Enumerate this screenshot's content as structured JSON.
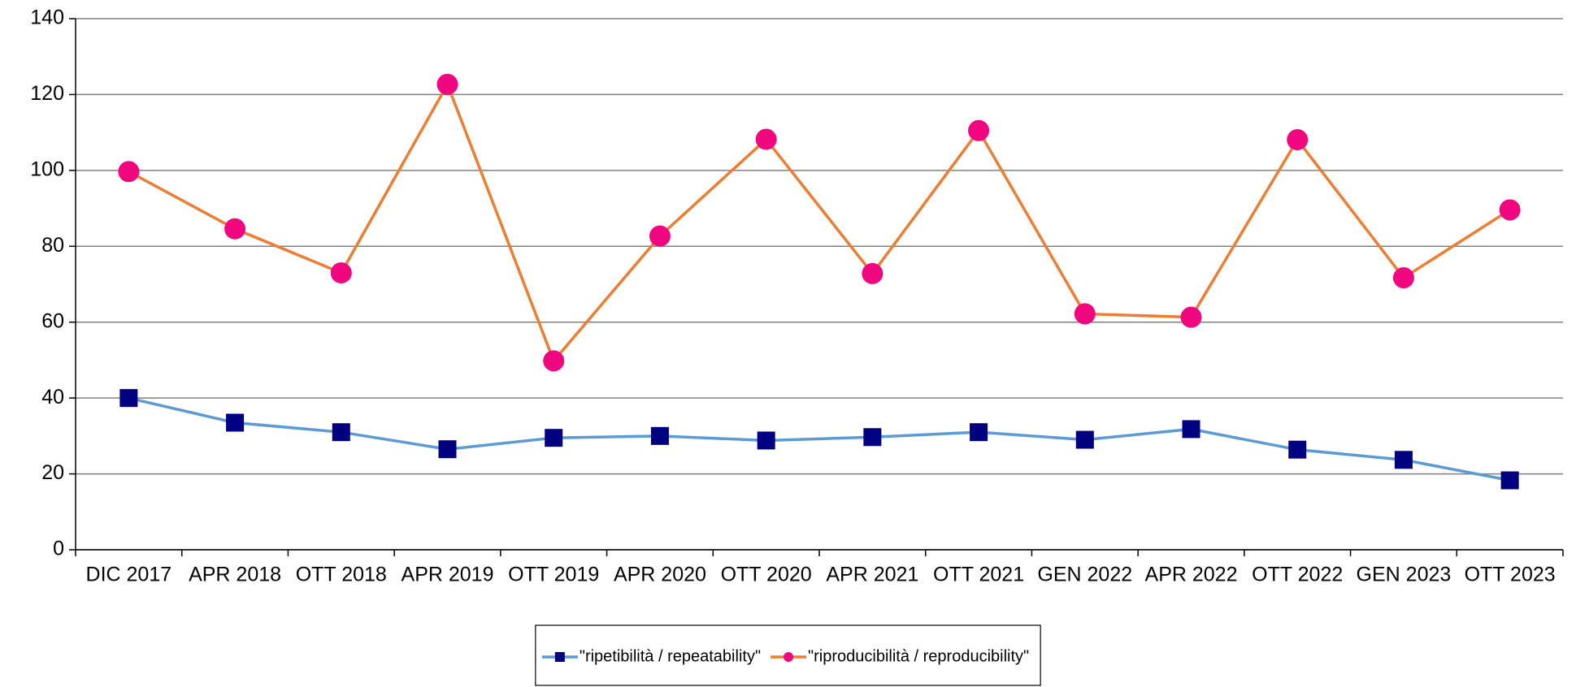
{
  "chart_data": {
    "type": "line",
    "categories": [
      "DIC 2017",
      "APR 2018",
      "OTT 2018",
      "APR 2019",
      "OTT 2019",
      "APR 2020",
      "OTT 2020",
      "APR 2021",
      "OTT 2021",
      "GEN 2022",
      "APR 2022",
      "OTT 2022",
      "GEN 2023",
      "OTT 2023"
    ],
    "series": [
      {
        "name": "\"ripetibilità / repeatability\"",
        "color": "#5b9bd5",
        "marker": "square",
        "marker_color": "#000080",
        "values": [
          40,
          33.5,
          31,
          26.5,
          29.5,
          30,
          28.8,
          29.7,
          31,
          29,
          31.8,
          26.4,
          23.7,
          18.3
        ]
      },
      {
        "name": "\"riproducibilità / reproducibility\"",
        "color": "#ed7d31",
        "marker": "circle",
        "marker_color": "#f0067f",
        "values": [
          99.7,
          84.6,
          73,
          122.7,
          49.8,
          82.7,
          108.2,
          72.8,
          110.5,
          62.2,
          61.3,
          108.1,
          71.7,
          89.6
        ]
      }
    ],
    "ylim": [
      0,
      140
    ],
    "yticks": [
      0,
      20,
      40,
      60,
      80,
      100,
      120,
      140
    ],
    "grid": true,
    "legend": "bottom"
  }
}
